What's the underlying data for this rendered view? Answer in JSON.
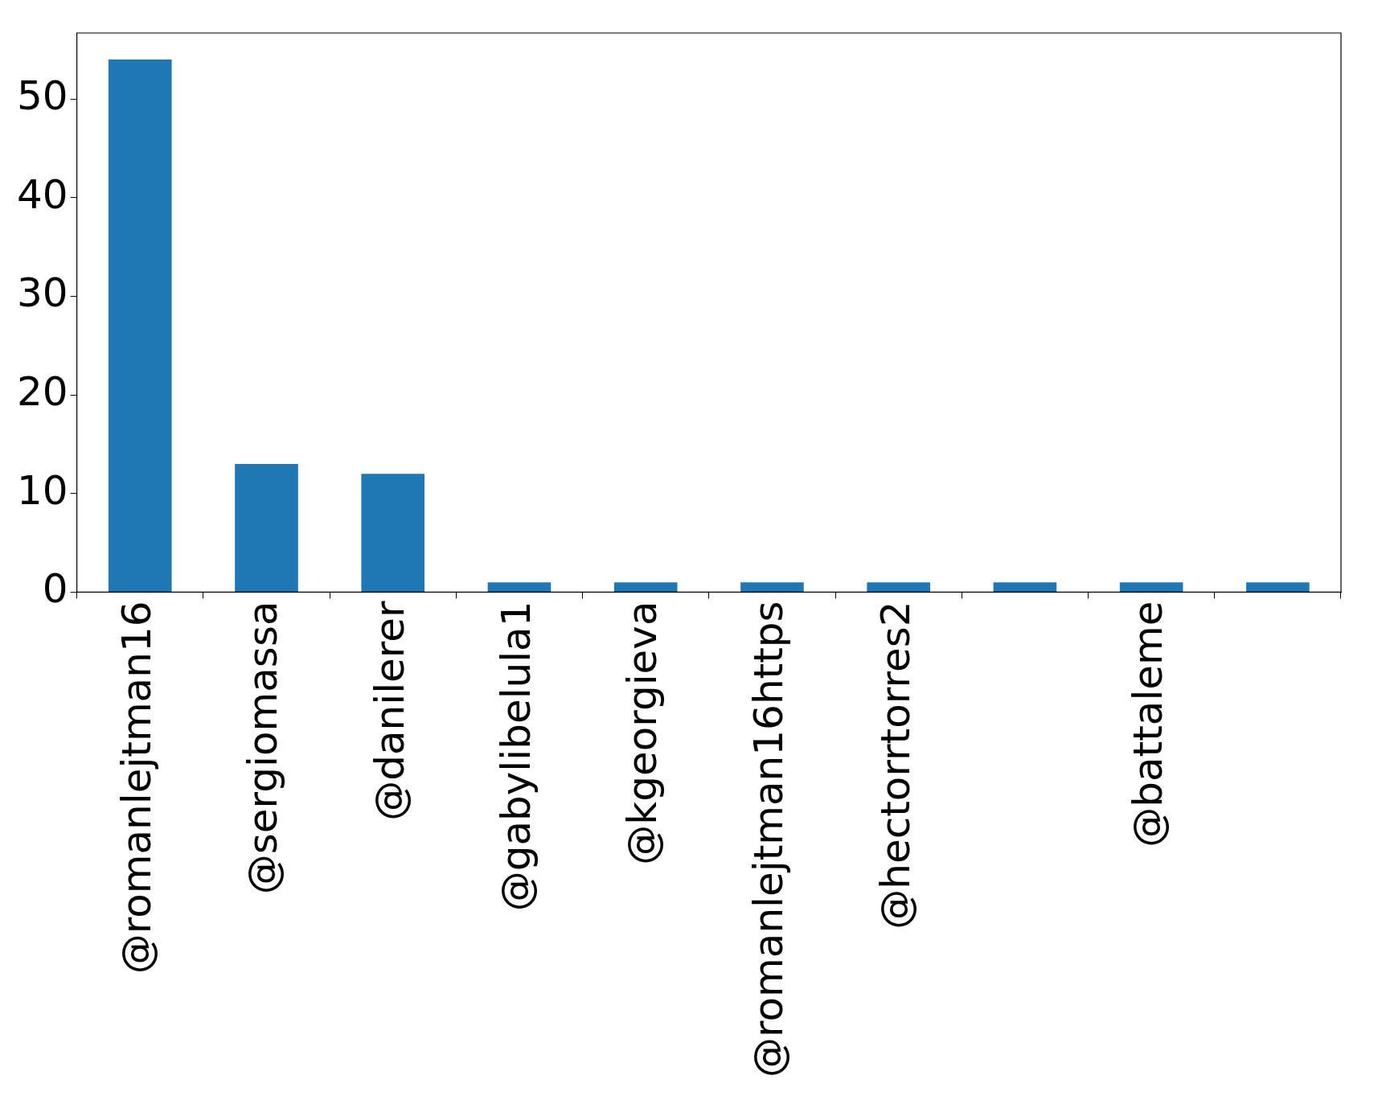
{
  "chart_data": {
    "type": "bar",
    "categories": [
      "@romanlejtman16",
      "@sergiomassa",
      "@danilerer",
      "@gabylibelula1",
      "@kgeorgieva",
      "@romanlejtman16https",
      "@hectorrtorres2",
      null,
      "@battaleme",
      null
    ],
    "values": [
      54,
      13,
      12,
      1,
      1,
      1,
      1,
      1,
      1,
      1
    ],
    "color": "#1f77b4",
    "ylim": [
      0,
      56.7
    ],
    "yticks": [
      0,
      10,
      20,
      30,
      40,
      50
    ],
    "grid": false,
    "legend": false
  }
}
